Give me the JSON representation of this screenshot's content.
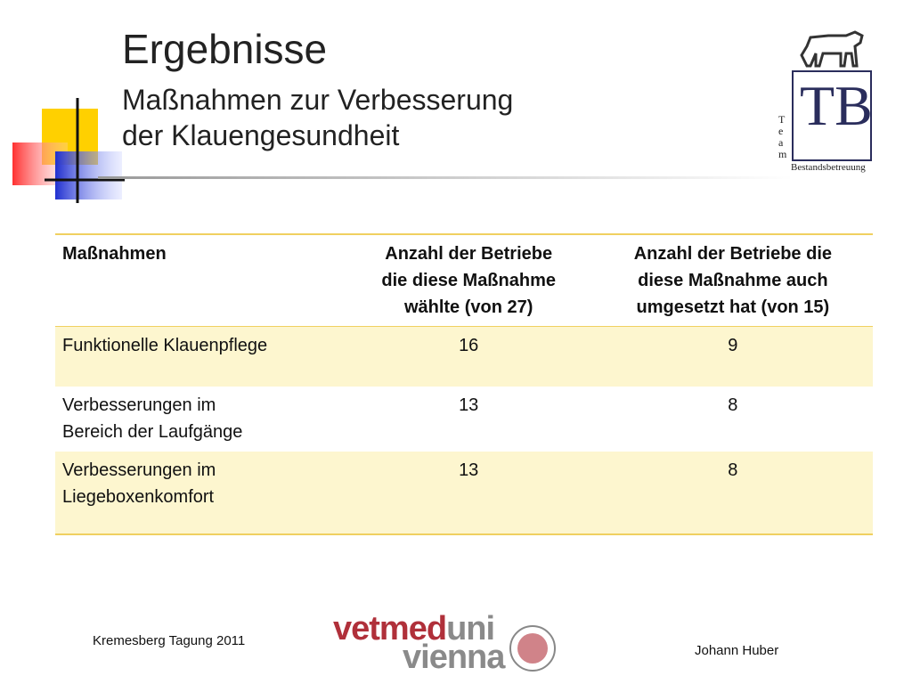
{
  "header": {
    "title": "Ergebnisse",
    "subtitle": [
      "Maßnahmen zur Verbesserung",
      "der Klauengesundheit"
    ]
  },
  "logo": {
    "monogram": "TB",
    "side": [
      "T",
      "e",
      "a",
      "m"
    ],
    "caption": "Bestandsbetreuung"
  },
  "table": {
    "columns": [
      [
        "Maßnahmen"
      ],
      [
        "Anzahl der Betriebe",
        "die diese Maßnahme",
        "wählte (von 27)"
      ],
      [
        "Anzahl der Betriebe die",
        "diese Maßnahme auch",
        "umgesetzt hat (von 15)"
      ]
    ],
    "rows": [
      [
        [
          "Funktionelle Klauenpflege"
        ],
        16,
        9
      ],
      [
        [
          "Verbesserungen im",
          "Bereich der Laufgänge"
        ],
        13,
        8
      ],
      [
        [
          "Verbesserungen im",
          "Liegeboxenkomfort"
        ],
        13,
        8
      ]
    ]
  },
  "footer": {
    "event": "Kremesberg Tagung 2011",
    "brand": [
      "vetmed",
      "uni"
    ],
    "brand_city": "vienna",
    "author": "Johann Huber"
  }
}
